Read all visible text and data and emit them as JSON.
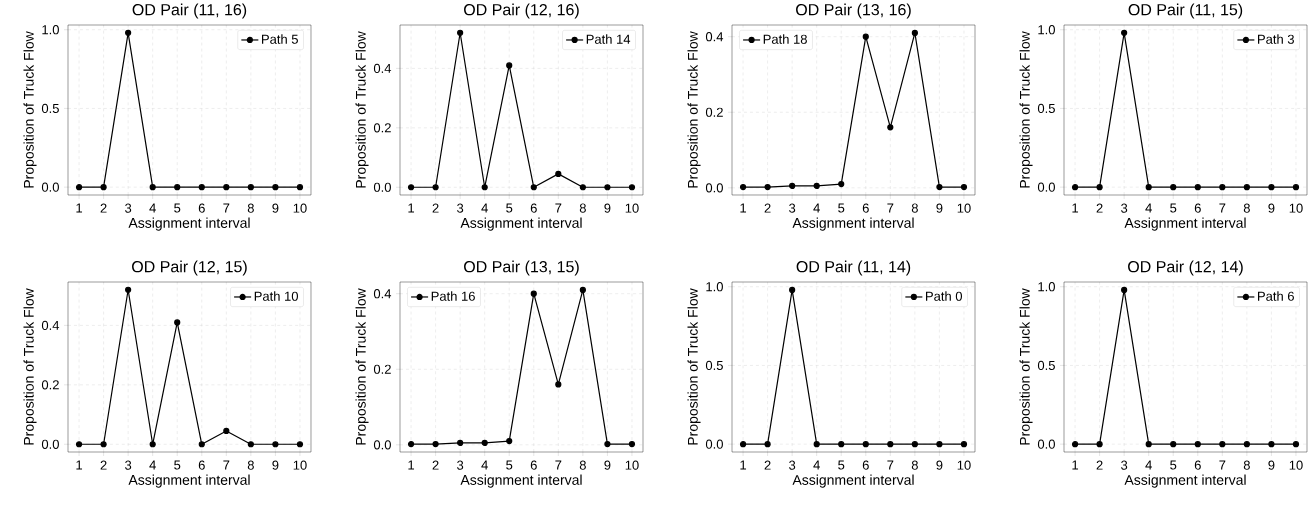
{
  "chart_data": [
    {
      "type": "line",
      "title": "OD Pair (11, 16)",
      "xlabel": "Assignment interval",
      "ylabel": "Proposition of Truck Flow",
      "x": [
        1,
        2,
        3,
        4,
        5,
        6,
        7,
        8,
        9,
        10
      ],
      "series": [
        {
          "name": "Path 5",
          "color": "#000000",
          "values": [
            0,
            0,
            0.98,
            0,
            0,
            0,
            0,
            0,
            0,
            0
          ]
        }
      ],
      "xlim": [
        0.55,
        10.45
      ],
      "ylim": [
        -0.05,
        1.03
      ],
      "xticks": [
        1,
        2,
        3,
        4,
        5,
        6,
        7,
        8,
        9,
        10
      ],
      "yticks": [
        {
          "value": 0,
          "label": "0.0"
        },
        {
          "value": 0.5,
          "label": "0.5"
        },
        {
          "value": 1,
          "label": "1.0"
        }
      ],
      "grid": true,
      "legend": "top right",
      "marker": "circle",
      "line_style": "solid"
    },
    {
      "type": "line",
      "title": "OD Pair (12, 16)",
      "xlabel": "Assignment interval",
      "ylabel": "Proposition of Truck Flow",
      "x": [
        1,
        2,
        3,
        4,
        5,
        6,
        7,
        8,
        9,
        10
      ],
      "series": [
        {
          "name": "Path 14",
          "color": "#000000",
          "values": [
            0,
            0,
            0.52,
            0,
            0.41,
            0,
            0.045,
            0,
            0,
            0
          ]
        }
      ],
      "xlim": [
        0.55,
        10.45
      ],
      "ylim": [
        -0.026,
        0.546
      ],
      "xticks": [
        1,
        2,
        3,
        4,
        5,
        6,
        7,
        8,
        9,
        10
      ],
      "yticks": [
        {
          "value": 0,
          "label": "0.0"
        },
        {
          "value": 0.2,
          "label": "0.2"
        },
        {
          "value": 0.4,
          "label": "0.4"
        }
      ],
      "grid": true,
      "legend": "top right",
      "marker": "circle",
      "line_style": "solid"
    },
    {
      "type": "line",
      "title": "OD Pair (13, 16)",
      "xlabel": "Assignment interval",
      "ylabel": "Proposition of Truck Flow",
      "x": [
        1,
        2,
        3,
        4,
        5,
        6,
        7,
        8,
        9,
        10
      ],
      "series": [
        {
          "name": "Path 18",
          "color": "#000000",
          "values": [
            0.002,
            0.002,
            0.005,
            0.005,
            0.01,
            0.4,
            0.16,
            0.41,
            0.002,
            0.002
          ]
        }
      ],
      "xlim": [
        0.55,
        10.45
      ],
      "ylim": [
        -0.019,
        0.431
      ],
      "xticks": [
        1,
        2,
        3,
        4,
        5,
        6,
        7,
        8,
        9,
        10
      ],
      "yticks": [
        {
          "value": 0,
          "label": "0.0"
        },
        {
          "value": 0.2,
          "label": "0.2"
        },
        {
          "value": 0.4,
          "label": "0.4"
        }
      ],
      "grid": true,
      "legend": "top left",
      "marker": "circle",
      "line_style": "solid"
    },
    {
      "type": "line",
      "title": "OD Pair (11, 15)",
      "xlabel": "Assignment interval",
      "ylabel": "Proposition of Truck Flow",
      "x": [
        1,
        2,
        3,
        4,
        5,
        6,
        7,
        8,
        9,
        10
      ],
      "series": [
        {
          "name": "Path 3",
          "color": "#000000",
          "values": [
            0,
            0,
            0.98,
            0,
            0,
            0,
            0,
            0,
            0,
            0
          ]
        }
      ],
      "xlim": [
        0.55,
        10.45
      ],
      "ylim": [
        -0.05,
        1.03
      ],
      "xticks": [
        1,
        2,
        3,
        4,
        5,
        6,
        7,
        8,
        9,
        10
      ],
      "yticks": [
        {
          "value": 0,
          "label": "0.0"
        },
        {
          "value": 0.5,
          "label": "0.5"
        },
        {
          "value": 1,
          "label": "1.0"
        }
      ],
      "grid": true,
      "legend": "top right",
      "marker": "circle",
      "line_style": "solid"
    },
    {
      "type": "line",
      "title": "OD Pair (12, 15)",
      "xlabel": "Assignment interval",
      "ylabel": "Proposition of Truck Flow",
      "x": [
        1,
        2,
        3,
        4,
        5,
        6,
        7,
        8,
        9,
        10
      ],
      "series": [
        {
          "name": "Path 10",
          "color": "#000000",
          "values": [
            0,
            0,
            0.52,
            0,
            0.41,
            0,
            0.045,
            0,
            0,
            0
          ]
        }
      ],
      "xlim": [
        0.55,
        10.45
      ],
      "ylim": [
        -0.026,
        0.546
      ],
      "xticks": [
        1,
        2,
        3,
        4,
        5,
        6,
        7,
        8,
        9,
        10
      ],
      "yticks": [
        {
          "value": 0,
          "label": "0.0"
        },
        {
          "value": 0.2,
          "label": "0.2"
        },
        {
          "value": 0.4,
          "label": "0.4"
        }
      ],
      "grid": true,
      "legend": "top right",
      "marker": "circle",
      "line_style": "solid"
    },
    {
      "type": "line",
      "title": "OD Pair (13, 15)",
      "xlabel": "Assignment interval",
      "ylabel": "Proposition of Truck Flow",
      "x": [
        1,
        2,
        3,
        4,
        5,
        6,
        7,
        8,
        9,
        10
      ],
      "series": [
        {
          "name": "Path 16",
          "color": "#000000",
          "values": [
            0.002,
            0.002,
            0.005,
            0.005,
            0.01,
            0.4,
            0.16,
            0.41,
            0.002,
            0.002
          ]
        }
      ],
      "xlim": [
        0.55,
        10.45
      ],
      "ylim": [
        -0.019,
        0.431
      ],
      "xticks": [
        1,
        2,
        3,
        4,
        5,
        6,
        7,
        8,
        9,
        10
      ],
      "yticks": [
        {
          "value": 0,
          "label": "0.0"
        },
        {
          "value": 0.2,
          "label": "0.2"
        },
        {
          "value": 0.4,
          "label": "0.4"
        }
      ],
      "grid": true,
      "legend": "top left",
      "marker": "circle",
      "line_style": "solid"
    },
    {
      "type": "line",
      "title": "OD Pair (11, 14)",
      "xlabel": "Assignment interval",
      "ylabel": "Proposition of Truck Flow",
      "x": [
        1,
        2,
        3,
        4,
        5,
        6,
        7,
        8,
        9,
        10
      ],
      "series": [
        {
          "name": "Path 0",
          "color": "#000000",
          "values": [
            0,
            0,
            0.98,
            0,
            0,
            0,
            0,
            0,
            0,
            0
          ]
        }
      ],
      "xlim": [
        0.55,
        10.45
      ],
      "ylim": [
        -0.05,
        1.03
      ],
      "xticks": [
        1,
        2,
        3,
        4,
        5,
        6,
        7,
        8,
        9,
        10
      ],
      "yticks": [
        {
          "value": 0,
          "label": "0.0"
        },
        {
          "value": 0.5,
          "label": "0.5"
        },
        {
          "value": 1,
          "label": "1.0"
        }
      ],
      "grid": true,
      "legend": "top right",
      "marker": "circle",
      "line_style": "solid"
    },
    {
      "type": "line",
      "title": "OD Pair (12, 14)",
      "xlabel": "Assignment interval",
      "ylabel": "Proposition of Truck Flow",
      "x": [
        1,
        2,
        3,
        4,
        5,
        6,
        7,
        8,
        9,
        10
      ],
      "series": [
        {
          "name": "Path 6",
          "color": "#000000",
          "values": [
            0,
            0,
            0.98,
            0,
            0,
            0,
            0,
            0,
            0,
            0
          ]
        }
      ],
      "xlim": [
        0.55,
        10.45
      ],
      "ylim": [
        -0.05,
        1.03
      ],
      "xticks": [
        1,
        2,
        3,
        4,
        5,
        6,
        7,
        8,
        9,
        10
      ],
      "yticks": [
        {
          "value": 0,
          "label": "0.0"
        },
        {
          "value": 0.5,
          "label": "0.5"
        },
        {
          "value": 1,
          "label": "1.0"
        }
      ],
      "grid": true,
      "legend": "top right",
      "marker": "circle",
      "line_style": "solid"
    }
  ]
}
